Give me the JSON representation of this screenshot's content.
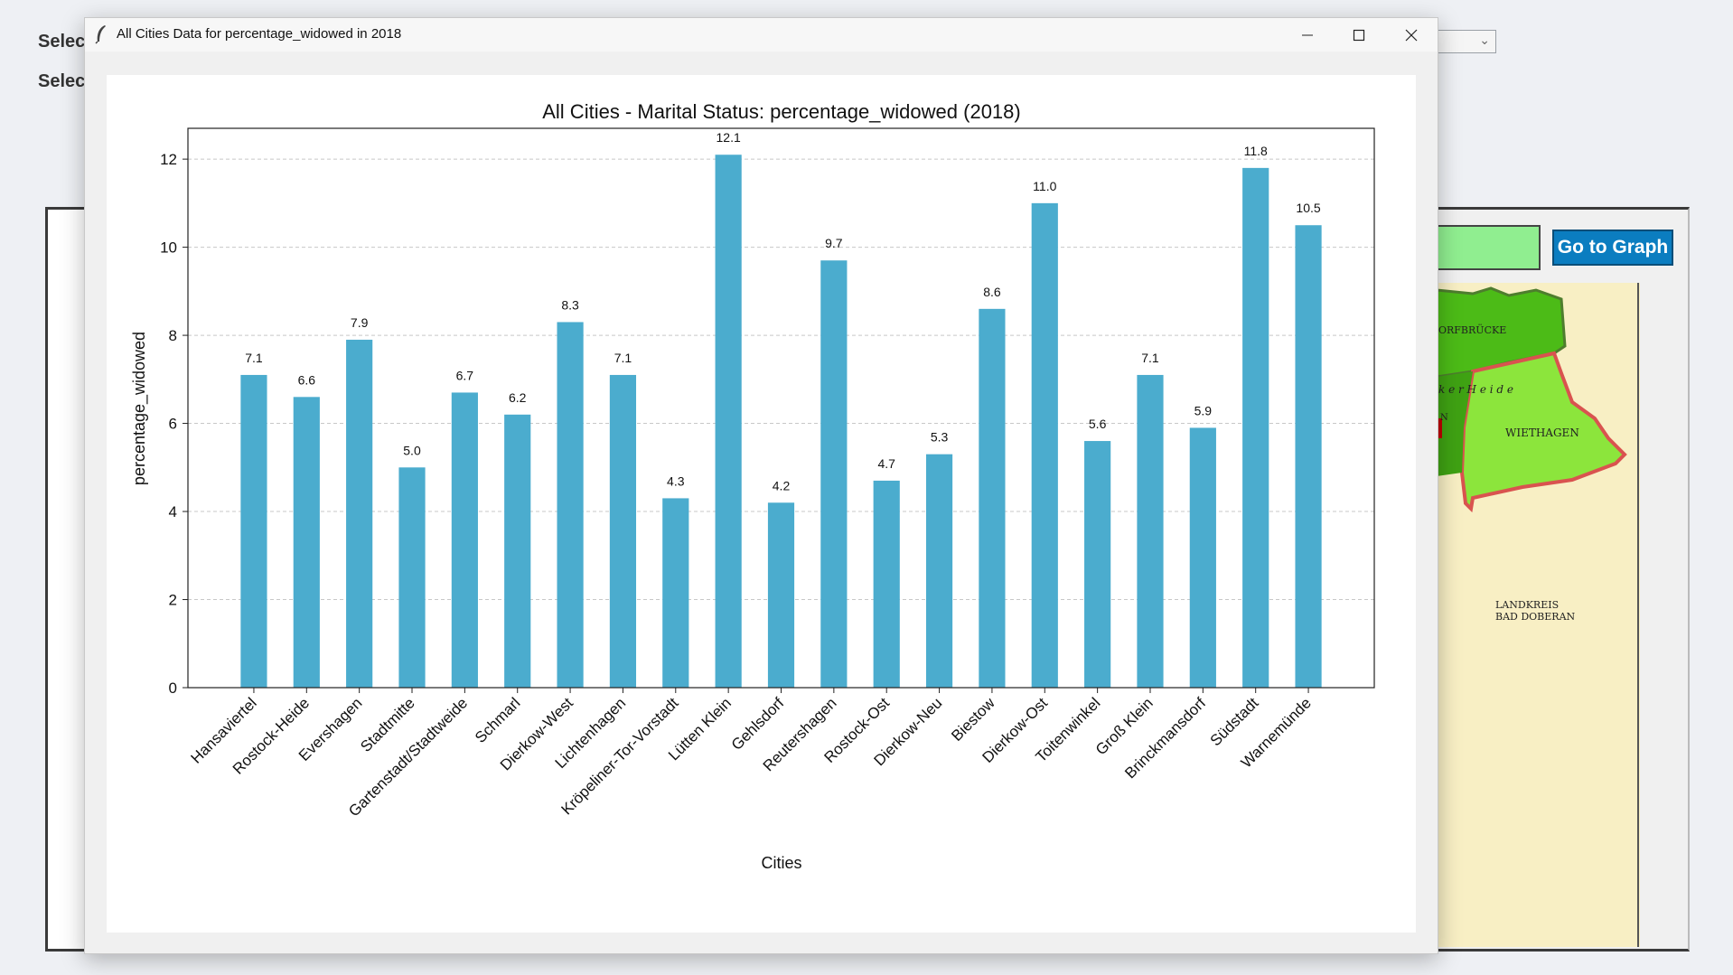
{
  "background": {
    "labels": [
      "Selec",
      "Selec"
    ],
    "go_button": "Go to Graph",
    "map_labels": {
      "dorfbrucke": "ORFBRÜCKE",
      "heide": "k e r   H e i d e",
      "n_label": "N",
      "wiethagen": "WIETHAGEN",
      "landkreis_1": "LANDKREIS",
      "landkreis_2": "BAD DOBERAN"
    }
  },
  "window": {
    "title": "All Cities Data for percentage_widowed in 2018",
    "controls": {
      "minimize": "─",
      "maximize": "☐",
      "close": "✕"
    }
  },
  "colors": {
    "bar": "#4bacce",
    "accent_button": "#0b7dc0"
  },
  "chart_data": {
    "type": "bar",
    "title": "All Cities - Marital Status: percentage_widowed (2018)",
    "xlabel": "Cities",
    "ylabel": "percentage_widowed",
    "ylim": [
      0,
      12.7
    ],
    "yticks": [
      0,
      2,
      4,
      6,
      8,
      10,
      12
    ],
    "grid": "horizontal dashed",
    "categories": [
      "Hansaviertel",
      "Rostock-Heide",
      "Evershagen",
      "Stadtmitte",
      "Gartenstadt/Stadtweide",
      "Schmarl",
      "Dierkow-West",
      "Lichtenhagen",
      "Kröpeliner-Tor-Vorstadt",
      "Lütten Klein",
      "Gehlsdorf",
      "Reutershagen",
      "Rostock-Ost",
      "Dierkow-Neu",
      "Biestow",
      "Dierkow-Ost",
      "Toitenwinkel",
      "Groß Klein",
      "Brinckmansdorf",
      "Südstadt",
      "Warnemünde"
    ],
    "values": [
      7.1,
      6.6,
      7.9,
      5.0,
      6.7,
      6.2,
      8.3,
      7.1,
      4.3,
      12.1,
      4.2,
      9.7,
      4.7,
      5.3,
      8.6,
      11.0,
      5.6,
      7.1,
      5.9,
      11.8,
      10.5
    ]
  }
}
